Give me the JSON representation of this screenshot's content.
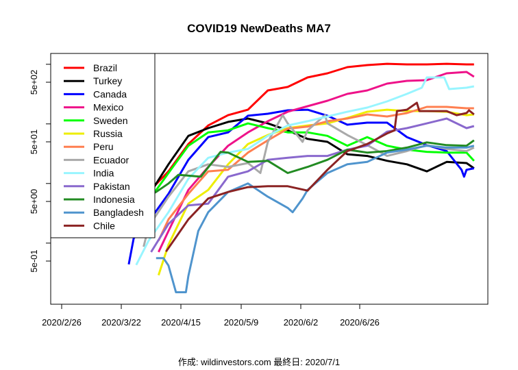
{
  "chart_data": {
    "type": "line",
    "title": "COVID19 NewDeaths MA7",
    "xlabel": "",
    "ylabel": "",
    "footer": "作成: wildinvestors.com 最終日: 2020/7/1",
    "y_scale": "log",
    "ylim": [
      0.1,
      1500
    ],
    "x_tick_labels": [
      "2020/2/26",
      "2020/3/22",
      "2020/4/15",
      "2020/5/9",
      "2020/6/2",
      "2020/6/26"
    ],
    "x_tick_dates": [
      "2020-02-26",
      "2020-03-22",
      "2020-04-15",
      "2020-05-09",
      "2020-06-02",
      "2020-06-26"
    ],
    "y_ticks": [
      1000,
      500,
      100,
      50,
      10,
      5,
      1,
      0.5
    ],
    "y_tick_labels": [
      {
        "value": 500,
        "label": "5e+02"
      },
      {
        "value": 50,
        "label": "5e+01"
      },
      {
        "value": 5,
        "label": "5e+00"
      },
      {
        "value": 0.5,
        "label": "5e-01"
      }
    ],
    "grid": false,
    "legend_position": "top-left",
    "series": [
      {
        "name": "Brazil",
        "color": "#ff0000",
        "points": [
          [
            "2020-04-01",
            7.2
          ],
          [
            "2020-04-09",
            16
          ],
          [
            "2020-04-17",
            46
          ],
          [
            "2020-04-25",
            94
          ],
          [
            "2020-05-03",
            140
          ],
          [
            "2020-05-11",
            173
          ],
          [
            "2020-05-19",
            364
          ],
          [
            "2020-05-27",
            416
          ],
          [
            "2020-06-04",
            601
          ],
          [
            "2020-06-12",
            705
          ],
          [
            "2020-06-20",
            895
          ],
          [
            "2020-06-28",
            968
          ],
          [
            "2020-07-06",
            1020
          ],
          [
            "2020-07-14",
            995
          ],
          [
            "2020-07-22",
            995
          ],
          [
            "2020-07-30",
            1020
          ],
          [
            "2020-08-07",
            995
          ],
          [
            "2020-08-10",
            995
          ]
        ]
      },
      {
        "name": "Turkey",
        "color": "#000000",
        "points": [
          [
            "2020-04-01",
            6.3
          ],
          [
            "2020-04-09",
            21
          ],
          [
            "2020-04-17",
            63
          ],
          [
            "2020-04-25",
            85
          ],
          [
            "2020-05-03",
            108
          ],
          [
            "2020-05-11",
            123
          ],
          [
            "2020-05-19",
            102
          ],
          [
            "2020-05-27",
            78
          ],
          [
            "2020-06-04",
            56
          ],
          [
            "2020-06-12",
            50
          ],
          [
            "2020-06-20",
            31
          ],
          [
            "2020-06-28",
            29
          ],
          [
            "2020-07-06",
            24
          ],
          [
            "2020-07-14",
            21
          ],
          [
            "2020-07-22",
            16
          ],
          [
            "2020-07-30",
            23
          ],
          [
            "2020-08-07",
            22
          ],
          [
            "2020-08-10",
            18
          ]
        ]
      },
      {
        "name": "Canada",
        "color": "#0000ff",
        "points": [
          [
            "2020-03-24",
            0.44
          ],
          [
            "2020-03-26",
            1.2
          ],
          [
            "2020-04-01",
            2.3
          ],
          [
            "2020-04-09",
            6.7
          ],
          [
            "2020-04-17",
            25
          ],
          [
            "2020-04-25",
            60
          ],
          [
            "2020-05-03",
            72
          ],
          [
            "2020-05-11",
            137
          ],
          [
            "2020-05-19",
            148
          ],
          [
            "2020-05-27",
            169
          ],
          [
            "2020-06-04",
            173
          ],
          [
            "2020-06-12",
            137
          ],
          [
            "2020-06-20",
            97
          ],
          [
            "2020-06-28",
            105
          ],
          [
            "2020-07-06",
            105
          ],
          [
            "2020-07-14",
            60
          ],
          [
            "2020-07-22",
            44
          ],
          [
            "2020-07-30",
            35
          ],
          [
            "2020-08-05",
            17
          ],
          [
            "2020-08-06",
            13
          ],
          [
            "2020-08-07",
            17
          ],
          [
            "2020-08-10",
            18
          ]
        ]
      },
      {
        "name": "Mexico",
        "color": "#ee1289",
        "points": [
          [
            "2020-04-05",
            0.71
          ],
          [
            "2020-04-09",
            1.6
          ],
          [
            "2020-04-17",
            7.8
          ],
          [
            "2020-04-25",
            19
          ],
          [
            "2020-05-03",
            43
          ],
          [
            "2020-05-11",
            72
          ],
          [
            "2020-05-19",
            111
          ],
          [
            "2020-05-27",
            160
          ],
          [
            "2020-06-04",
            198
          ],
          [
            "2020-06-12",
            245
          ],
          [
            "2020-06-20",
            319
          ],
          [
            "2020-06-28",
            364
          ],
          [
            "2020-07-06",
            474
          ],
          [
            "2020-07-14",
            527
          ],
          [
            "2020-07-22",
            541
          ],
          [
            "2020-07-30",
            705
          ],
          [
            "2020-08-07",
            743
          ],
          [
            "2020-08-10",
            618
          ]
        ]
      },
      {
        "name": "Sweden",
        "color": "#00ff00",
        "points": [
          [
            "2020-03-26",
            1.3
          ],
          [
            "2020-04-01",
            2.6
          ],
          [
            "2020-04-03",
            6.7
          ],
          [
            "2020-04-09",
            15
          ],
          [
            "2020-04-17",
            43
          ],
          [
            "2020-04-25",
            72
          ],
          [
            "2020-05-03",
            78
          ],
          [
            "2020-05-11",
            102
          ],
          [
            "2020-05-19",
            85
          ],
          [
            "2020-05-27",
            72
          ],
          [
            "2020-06-04",
            72
          ],
          [
            "2020-06-12",
            63
          ],
          [
            "2020-06-20",
            43
          ],
          [
            "2020-06-28",
            60
          ],
          [
            "2020-07-06",
            43
          ],
          [
            "2020-07-14",
            37
          ],
          [
            "2020-07-22",
            34
          ],
          [
            "2020-07-30",
            33
          ],
          [
            "2020-08-07",
            33
          ],
          [
            "2020-08-10",
            24
          ]
        ]
      },
      {
        "name": "Russia",
        "color": "#eeee00",
        "points": [
          [
            "2020-04-05",
            0.29
          ],
          [
            "2020-04-09",
            0.94
          ],
          [
            "2020-04-17",
            4.6
          ],
          [
            "2020-04-25",
            7.8
          ],
          [
            "2020-05-03",
            21
          ],
          [
            "2020-05-11",
            46
          ],
          [
            "2020-05-19",
            65
          ],
          [
            "2020-05-27",
            85
          ],
          [
            "2020-06-04",
            94
          ],
          [
            "2020-06-12",
            102
          ],
          [
            "2020-06-20",
            126
          ],
          [
            "2020-06-28",
            160
          ],
          [
            "2020-07-06",
            173
          ],
          [
            "2020-07-14",
            164
          ],
          [
            "2020-07-22",
            164
          ],
          [
            "2020-07-30",
            160
          ],
          [
            "2020-08-07",
            140
          ],
          [
            "2020-08-10",
            144
          ]
        ]
      },
      {
        "name": "Peru",
        "color": "#ff7f50",
        "points": [
          [
            "2020-04-05",
            1.1
          ],
          [
            "2020-04-09",
            2.5
          ],
          [
            "2020-04-17",
            6.7
          ],
          [
            "2020-04-25",
            16
          ],
          [
            "2020-05-03",
            17
          ],
          [
            "2020-05-11",
            33
          ],
          [
            "2020-05-19",
            53
          ],
          [
            "2020-05-27",
            83
          ],
          [
            "2020-06-04",
            90
          ],
          [
            "2020-06-12",
            111
          ],
          [
            "2020-06-20",
            123
          ],
          [
            "2020-06-28",
            144
          ],
          [
            "2020-07-06",
            133
          ],
          [
            "2020-07-14",
            152
          ],
          [
            "2020-07-22",
            193
          ],
          [
            "2020-07-30",
            193
          ],
          [
            "2020-08-07",
            183
          ],
          [
            "2020-08-10",
            183
          ]
        ]
      },
      {
        "name": "Ecuador",
        "color": "#a9a9a9",
        "points": [
          [
            "2020-03-30",
            0.87
          ],
          [
            "2020-04-01",
            1.9
          ],
          [
            "2020-04-09",
            6.0
          ],
          [
            "2020-04-17",
            16
          ],
          [
            "2020-04-25",
            21
          ],
          [
            "2020-05-03",
            19
          ],
          [
            "2020-05-11",
            22
          ],
          [
            "2020-05-16",
            15
          ],
          [
            "2020-05-19",
            50
          ],
          [
            "2020-05-25",
            140
          ],
          [
            "2020-05-27",
            102
          ],
          [
            "2020-06-02",
            50
          ],
          [
            "2020-06-04",
            78
          ],
          [
            "2020-06-11",
            140
          ],
          [
            "2020-06-12",
            102
          ],
          [
            "2020-06-20",
            65
          ],
          [
            "2020-06-28",
            44
          ],
          [
            "2020-07-06",
            29
          ],
          [
            "2020-07-14",
            35
          ],
          [
            "2020-07-22",
            44
          ],
          [
            "2020-07-30",
            38
          ],
          [
            "2020-08-07",
            35
          ],
          [
            "2020-08-10",
            40
          ]
        ]
      },
      {
        "name": "India",
        "color": "#98f5ff",
        "points": [
          [
            "2020-03-27",
            0.43
          ],
          [
            "2020-04-01",
            1.1
          ],
          [
            "2020-04-09",
            3.3
          ],
          [
            "2020-04-17",
            12
          ],
          [
            "2020-04-25",
            27
          ],
          [
            "2020-05-03",
            33
          ],
          [
            "2020-05-11",
            38
          ],
          [
            "2020-05-19",
            63
          ],
          [
            "2020-05-27",
            94
          ],
          [
            "2020-06-04",
            111
          ],
          [
            "2020-06-12",
            133
          ],
          [
            "2020-06-20",
            160
          ],
          [
            "2020-06-28",
            188
          ],
          [
            "2020-07-06",
            238
          ],
          [
            "2020-07-14",
            319
          ],
          [
            "2020-07-20",
            405
          ],
          [
            "2020-07-22",
            601
          ],
          [
            "2020-07-29",
            601
          ],
          [
            "2020-07-31",
            384
          ],
          [
            "2020-08-07",
            405
          ],
          [
            "2020-08-10",
            427
          ]
        ]
      },
      {
        "name": "Pakistan",
        "color": "#8968cd",
        "points": [
          [
            "2020-04-02",
            0.71
          ],
          [
            "2020-04-09",
            2.1
          ],
          [
            "2020-04-17",
            4.3
          ],
          [
            "2020-04-25",
            4.6
          ],
          [
            "2020-05-03",
            13
          ],
          [
            "2020-05-11",
            16
          ],
          [
            "2020-05-19",
            25
          ],
          [
            "2020-05-27",
            27
          ],
          [
            "2020-06-04",
            29
          ],
          [
            "2020-06-12",
            29
          ],
          [
            "2020-06-20",
            37
          ],
          [
            "2020-06-28",
            43
          ],
          [
            "2020-07-06",
            74
          ],
          [
            "2020-07-14",
            85
          ],
          [
            "2020-07-22",
            102
          ],
          [
            "2020-07-30",
            123
          ],
          [
            "2020-08-07",
            85
          ],
          [
            "2020-08-10",
            92
          ]
        ]
      },
      {
        "name": "Indonesia",
        "color": "#228b22",
        "points": [
          [
            "2020-03-26",
            2.6
          ],
          [
            "2020-04-01",
            6.2
          ],
          [
            "2020-04-04",
            7.2
          ],
          [
            "2020-04-09",
            10
          ],
          [
            "2020-04-13",
            14
          ],
          [
            "2020-04-22",
            13
          ],
          [
            "2020-04-30",
            34
          ],
          [
            "2020-05-03",
            33
          ],
          [
            "2020-05-11",
            23
          ],
          [
            "2020-05-19",
            24
          ],
          [
            "2020-05-27",
            15
          ],
          [
            "2020-06-04",
            19
          ],
          [
            "2020-06-12",
            25
          ],
          [
            "2020-06-20",
            37
          ],
          [
            "2020-06-28",
            33
          ],
          [
            "2020-07-06",
            35
          ],
          [
            "2020-07-14",
            40
          ],
          [
            "2020-07-22",
            49
          ],
          [
            "2020-07-30",
            44
          ],
          [
            "2020-08-07",
            43
          ],
          [
            "2020-08-10",
            53
          ]
        ]
      },
      {
        "name": "Bangladesh",
        "color": "#4f94cd",
        "points": [
          [
            "2020-04-04",
            0.56
          ],
          [
            "2020-04-07",
            0.56
          ],
          [
            "2020-04-09",
            0.42
          ],
          [
            "2020-04-12",
            0.15
          ],
          [
            "2020-04-16",
            0.15
          ],
          [
            "2020-04-17",
            0.28
          ],
          [
            "2020-04-21",
            1.6
          ],
          [
            "2020-04-25",
            3.3
          ],
          [
            "2020-05-03",
            7.2
          ],
          [
            "2020-05-11",
            10
          ],
          [
            "2020-05-19",
            6.0
          ],
          [
            "2020-05-27",
            3.9
          ],
          [
            "2020-05-29",
            3.3
          ],
          [
            "2020-06-02",
            5.6
          ],
          [
            "2020-06-04",
            7.8
          ],
          [
            "2020-06-12",
            15
          ],
          [
            "2020-06-20",
            21
          ],
          [
            "2020-06-28",
            23
          ],
          [
            "2020-07-06",
            33
          ],
          [
            "2020-07-14",
            37
          ],
          [
            "2020-07-22",
            43
          ],
          [
            "2020-07-30",
            40
          ],
          [
            "2020-08-07",
            40
          ],
          [
            "2020-08-10",
            43
          ]
        ]
      },
      {
        "name": "Chile",
        "color": "#8b2323",
        "points": [
          [
            "2020-04-08",
            0.72
          ],
          [
            "2020-04-17",
            2.5
          ],
          [
            "2020-04-25",
            5.6
          ],
          [
            "2020-05-03",
            7.2
          ],
          [
            "2020-05-11",
            8.7
          ],
          [
            "2020-05-19",
            9.0
          ],
          [
            "2020-05-27",
            9.0
          ],
          [
            "2020-06-04",
            7.6
          ],
          [
            "2020-06-12",
            17
          ],
          [
            "2020-06-20",
            35
          ],
          [
            "2020-06-28",
            46
          ],
          [
            "2020-07-06",
            69
          ],
          [
            "2020-07-09",
            78
          ],
          [
            "2020-07-10",
            164
          ],
          [
            "2020-07-14",
            173
          ],
          [
            "2020-07-18",
            226
          ],
          [
            "2020-07-19",
            164
          ],
          [
            "2020-07-22",
            164
          ],
          [
            "2020-07-30",
            164
          ],
          [
            "2020-08-03",
            140
          ],
          [
            "2020-08-07",
            152
          ],
          [
            "2020-08-08",
            169
          ],
          [
            "2020-08-10",
            144
          ]
        ]
      }
    ]
  }
}
